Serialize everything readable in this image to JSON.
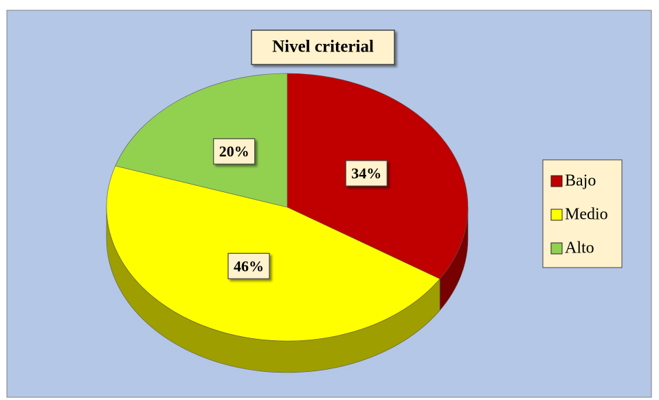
{
  "chart_data": {
    "type": "pie",
    "title": "Nivel criterial",
    "categories": [
      "Bajo",
      "Medio",
      "Alto"
    ],
    "values": [
      34,
      46,
      20
    ],
    "value_labels": [
      "34%",
      "46%",
      "20%"
    ],
    "colors": [
      "#c00000",
      "#ffff00",
      "#92d050"
    ],
    "legend": "right"
  }
}
